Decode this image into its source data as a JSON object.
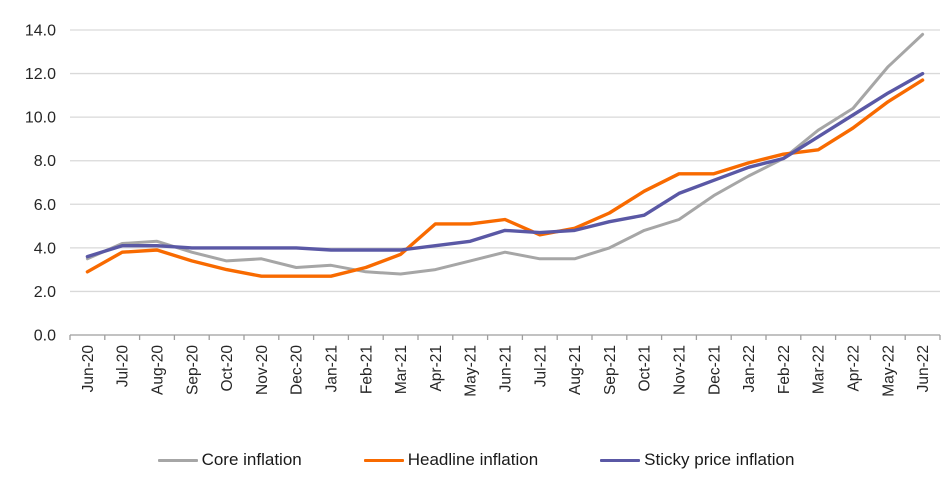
{
  "chart_data": {
    "type": "line",
    "title": "",
    "categories": [
      "Jun-20",
      "Jul-20",
      "Aug-20",
      "Sep-20",
      "Oct-20",
      "Nov-20",
      "Dec-20",
      "Jan-21",
      "Feb-21",
      "Mar-21",
      "Apr-21",
      "May-21",
      "Jun-21",
      "Jul-21",
      "Aug-21",
      "Sep-21",
      "Oct-21",
      "Nov-21",
      "Dec-21",
      "Jan-22",
      "Feb-22",
      "Mar-22",
      "Apr-22",
      "May-22",
      "Jun-22"
    ],
    "series": [
      {
        "name": "Core inflation",
        "color": "#A6A6A6",
        "values": [
          3.5,
          4.2,
          4.3,
          3.8,
          3.4,
          3.5,
          3.1,
          3.2,
          2.9,
          2.8,
          3.0,
          3.4,
          3.8,
          3.5,
          3.5,
          4.0,
          4.8,
          5.3,
          6.4,
          7.3,
          8.1,
          9.4,
          10.4,
          12.3,
          13.8
        ]
      },
      {
        "name": "Headline inflation",
        "color": "#F86A00",
        "values": [
          2.9,
          3.8,
          3.9,
          3.4,
          3.0,
          2.7,
          2.7,
          2.7,
          3.1,
          3.7,
          5.1,
          5.1,
          5.3,
          4.6,
          4.9,
          5.6,
          6.6,
          7.4,
          7.4,
          7.9,
          8.3,
          8.5,
          9.5,
          10.7,
          11.7
        ]
      },
      {
        "name": "Sticky price inflation",
        "color": "#5A58A5",
        "values": [
          3.6,
          4.1,
          4.1,
          4.0,
          4.0,
          4.0,
          4.0,
          3.9,
          3.9,
          3.9,
          4.1,
          4.3,
          4.8,
          4.7,
          4.8,
          5.2,
          5.5,
          6.5,
          7.1,
          7.7,
          8.1,
          9.1,
          10.1,
          11.1,
          12.0
        ]
      }
    ],
    "xlabel": "",
    "ylabel": "",
    "ylim": [
      0,
      14
    ],
    "ytick_labels": [
      "0.0",
      "2.0",
      "4.0",
      "6.0",
      "8.0",
      "10.0",
      "12.0",
      "14.0"
    ],
    "grid": "horizontal",
    "legend_position": "bottom"
  },
  "style": {
    "grid_color": "#D9D9D9",
    "axis_color": "#9E9E9E",
    "tick_color": "#9E9E9E",
    "label_color": "#262626"
  }
}
